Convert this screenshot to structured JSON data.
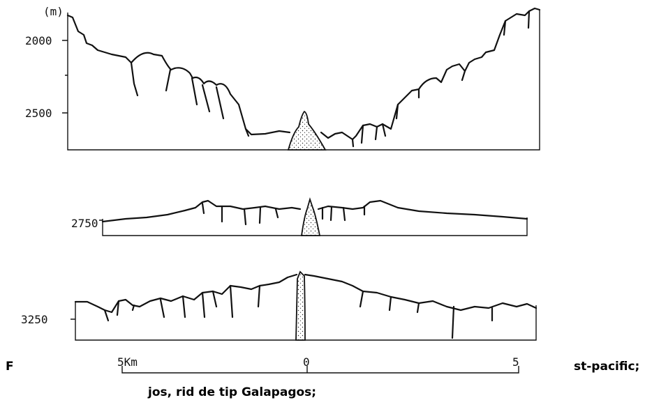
{
  "profile_1": {
    "unit": "(m)",
    "ticks": [
      "2000",
      "2500"
    ]
  },
  "profile_2": {
    "ticks": [
      "2750"
    ]
  },
  "profile_3": {
    "ticks": [
      "3250"
    ]
  },
  "scale_bar": {
    "labels": [
      "5Km",
      "0",
      "5"
    ]
  },
  "caption": {
    "line_1_left": "F",
    "line_1_right": "st-pacific;",
    "line_2": "jos, rid de tip Galapagos;"
  }
}
